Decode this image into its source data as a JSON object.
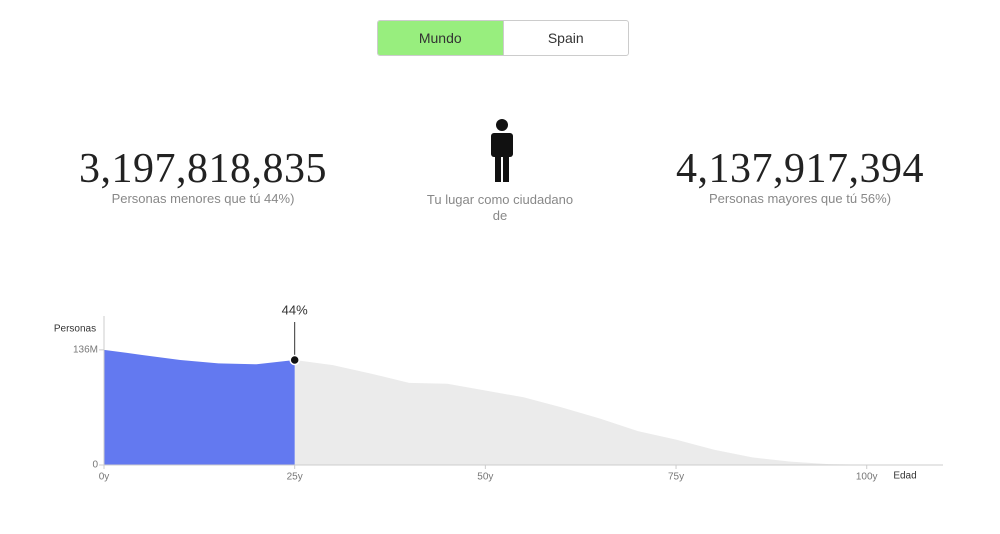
{
  "toggle": [
    "Mundo",
    "Spain"
  ],
  "left_stat": {
    "number": "3,197,818,835",
    "caption": "Personas menores que tú 44%)"
  },
  "center_caption": "Tu lugar como ciudadano de",
  "right_stat": {
    "number": "4,137,917,394",
    "caption": "Personas mayores que tú 56%)"
  },
  "chart_data": {
    "type": "area",
    "y_label": "Personas",
    "x_label": "Edad",
    "x": [
      0,
      5,
      10,
      15,
      20,
      25,
      30,
      35,
      40,
      45,
      50,
      55,
      60,
      65,
      70,
      75,
      80,
      85,
      90,
      95,
      100
    ],
    "values": [
      136,
      130,
      124,
      120,
      119,
      124,
      118,
      108,
      97,
      96,
      88,
      80,
      68,
      55,
      40,
      30,
      18,
      9,
      4,
      1,
      0.3
    ],
    "color": "#ebebeb",
    "highlight_color": "#6379f0",
    "highlight": {
      "x": 25,
      "label": "44%"
    },
    "xlim": [
      0,
      110
    ],
    "ylim": [
      0,
      176
    ],
    "xticks": [
      {
        "value": 0,
        "label": "0y"
      },
      {
        "value": 25,
        "label": "25y"
      },
      {
        "value": 50,
        "label": "50y"
      },
      {
        "value": 75,
        "label": "75y"
      },
      {
        "value": 100,
        "label": "100y"
      }
    ],
    "yticks": [
      0,
      {
        "value": 136,
        "label": "136M"
      }
    ]
  }
}
